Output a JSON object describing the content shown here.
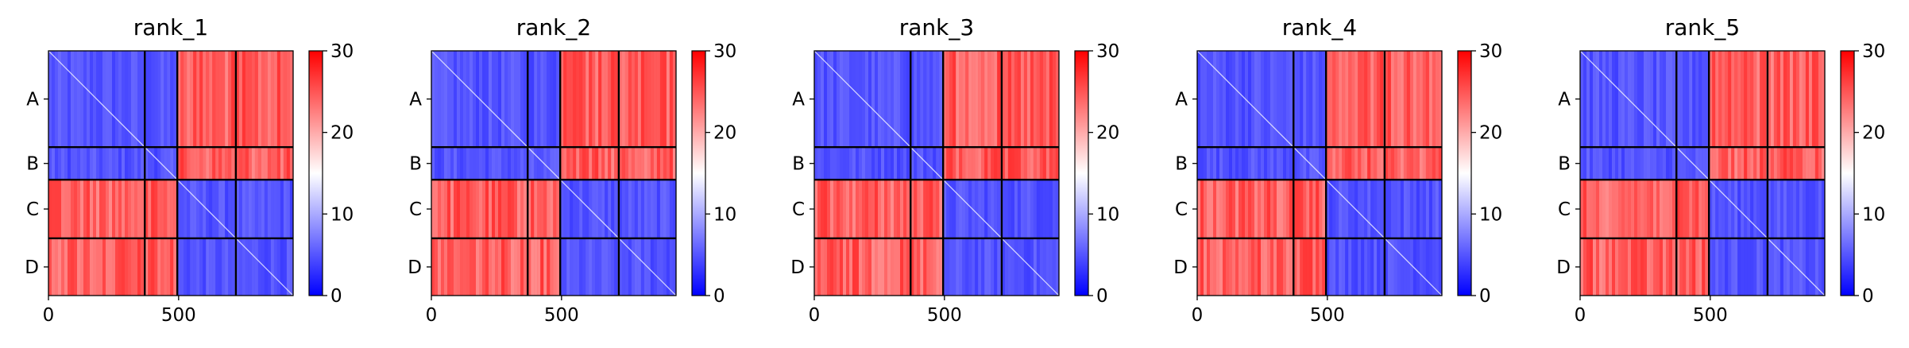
{
  "chart_data": {
    "type": "heatmap",
    "layout": "5 panels in one row, each with its own colorbar",
    "colormap": {
      "name": "bwr",
      "low": "#0000ff",
      "mid": "#ffffff",
      "high": "#ff0000"
    },
    "value_range": [
      0,
      30
    ],
    "total_length": 940,
    "chain_labels": [
      "A",
      "B",
      "C",
      "D"
    ],
    "chain_boundaries": [
      0,
      370,
      495,
      720,
      940
    ],
    "x_ticks": [
      0,
      500
    ],
    "colorbar_ticks": [
      0,
      10,
      20,
      30
    ],
    "block_structure": "Intra-chain blocks and the A–B / C–D pairs are low (blue, ~0–10); cross blocks between {A,B} and {C,D} are high (red, ~25–30).",
    "panels": [
      {
        "title": "rank_1"
      },
      {
        "title": "rank_2"
      },
      {
        "title": "rank_3"
      },
      {
        "title": "rank_4"
      },
      {
        "title": "rank_5"
      }
    ]
  }
}
